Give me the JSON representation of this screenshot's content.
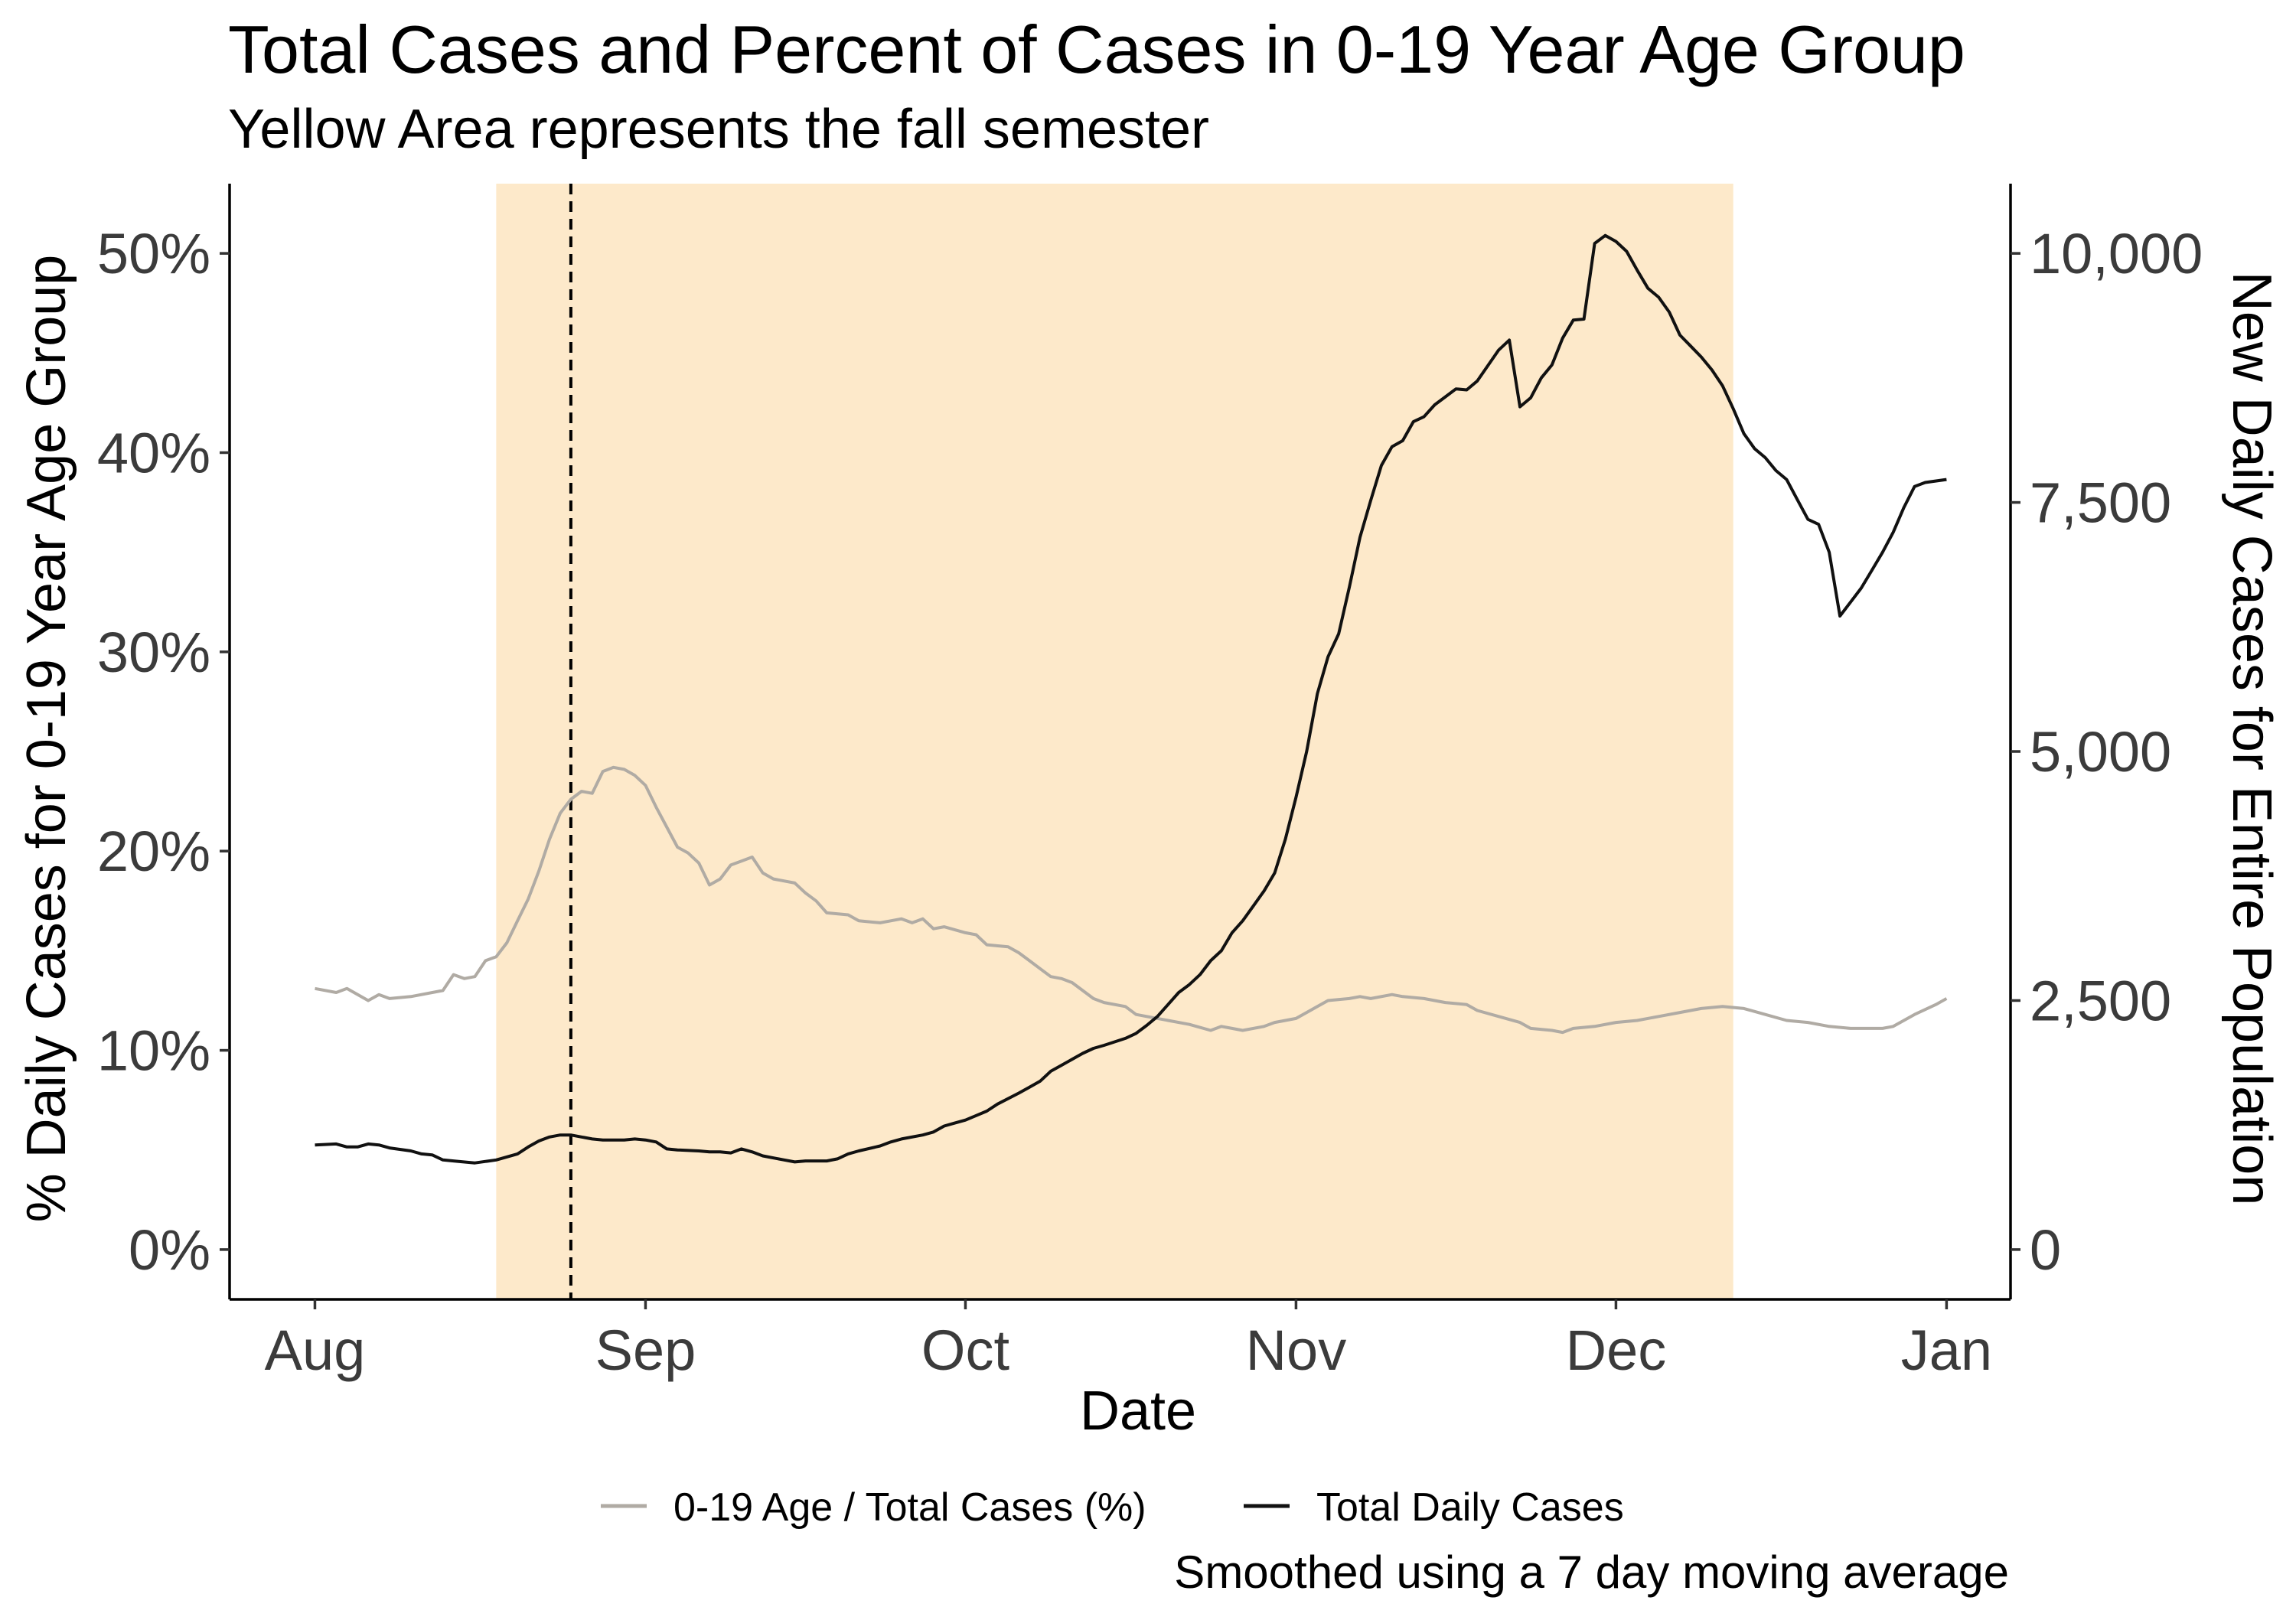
{
  "chart_data": {
    "type": "line",
    "title": "Total Cases and Percent of Cases in 0-19 Year Age Group",
    "subtitle": "Yellow Area represents the fall semester",
    "xlabel": "Date",
    "ylabel_left": "% Daily Cases for 0-19 Year Age Group",
    "ylabel_right": "New Daily Cases for Entire Population",
    "caption": "Smoothed using a 7 day moving average",
    "legend_position": "bottom",
    "grid": false,
    "x_ticks": [
      {
        "label": "Aug",
        "date": "2020-08-01"
      },
      {
        "label": "Sep",
        "date": "2020-09-01"
      },
      {
        "label": "Oct",
        "date": "2020-10-01"
      },
      {
        "label": "Nov",
        "date": "2020-11-01"
      },
      {
        "label": "Dec",
        "date": "2020-12-01"
      },
      {
        "label": "Jan",
        "date": "2021-01-01"
      }
    ],
    "xlim": [
      "2020-07-24",
      "2021-01-07"
    ],
    "y_left": {
      "ticks": [
        {
          "label": "0%",
          "value": 0
        },
        {
          "label": "10%",
          "value": 10
        },
        {
          "label": "20%",
          "value": 20
        },
        {
          "label": "30%",
          "value": 30
        },
        {
          "label": "40%",
          "value": 40
        },
        {
          "label": "50%",
          "value": 50
        }
      ],
      "lim": [
        -2.5,
        53.5
      ]
    },
    "y_right": {
      "ticks": [
        {
          "label": "0",
          "value": 0
        },
        {
          "label": "2,500",
          "value": 2500
        },
        {
          "label": "5,000",
          "value": 5000
        },
        {
          "label": "7,500",
          "value": 7500
        },
        {
          "label": "10,000",
          "value": 10000
        }
      ],
      "lim": [
        -500,
        10700
      ]
    },
    "shaded_region": {
      "start": "2020-08-18",
      "end": "2020-12-12",
      "color": "#fde9ca"
    },
    "vline": {
      "date": "2020-08-25",
      "style": "dashed",
      "color": "#000000"
    },
    "series": [
      {
        "name": "0-19 Age / Total Cases (%)",
        "axis": "left",
        "color": "#b0aba4",
        "points": [
          [
            "2020-08-01",
            13.1
          ],
          [
            "2020-08-03",
            12.9
          ],
          [
            "2020-08-04",
            13.1
          ],
          [
            "2020-08-06",
            12.5
          ],
          [
            "2020-08-07",
            12.8
          ],
          [
            "2020-08-08",
            12.6
          ],
          [
            "2020-08-10",
            12.7
          ],
          [
            "2020-08-13",
            13.0
          ],
          [
            "2020-08-14",
            13.8
          ],
          [
            "2020-08-15",
            13.6
          ],
          [
            "2020-08-16",
            13.7
          ],
          [
            "2020-08-17",
            14.5
          ],
          [
            "2020-08-18",
            14.7
          ],
          [
            "2020-08-19",
            15.4
          ],
          [
            "2020-08-20",
            16.5
          ],
          [
            "2020-08-21",
            17.6
          ],
          [
            "2020-08-22",
            19.0
          ],
          [
            "2020-08-23",
            20.6
          ],
          [
            "2020-08-24",
            21.9
          ],
          [
            "2020-08-25",
            22.6
          ],
          [
            "2020-08-26",
            23.0
          ],
          [
            "2020-08-27",
            22.9
          ],
          [
            "2020-08-28",
            24.0
          ],
          [
            "2020-08-29",
            24.2
          ],
          [
            "2020-08-30",
            24.1
          ],
          [
            "2020-08-31",
            23.8
          ],
          [
            "2020-09-01",
            23.3
          ],
          [
            "2020-09-02",
            22.2
          ],
          [
            "2020-09-03",
            21.2
          ],
          [
            "2020-09-04",
            20.2
          ],
          [
            "2020-09-05",
            19.9
          ],
          [
            "2020-09-06",
            19.4
          ],
          [
            "2020-09-07",
            18.3
          ],
          [
            "2020-09-08",
            18.6
          ],
          [
            "2020-09-09",
            19.3
          ],
          [
            "2020-09-10",
            19.5
          ],
          [
            "2020-09-11",
            19.7
          ],
          [
            "2020-09-12",
            18.9
          ],
          [
            "2020-09-13",
            18.6
          ],
          [
            "2020-09-15",
            18.4
          ],
          [
            "2020-09-16",
            17.9
          ],
          [
            "2020-09-17",
            17.5
          ],
          [
            "2020-09-18",
            16.9
          ],
          [
            "2020-09-20",
            16.8
          ],
          [
            "2020-09-21",
            16.5
          ],
          [
            "2020-09-23",
            16.4
          ],
          [
            "2020-09-24",
            16.5
          ],
          [
            "2020-09-25",
            16.6
          ],
          [
            "2020-09-26",
            16.4
          ],
          [
            "2020-09-27",
            16.6
          ],
          [
            "2020-09-28",
            16.1
          ],
          [
            "2020-09-29",
            16.2
          ],
          [
            "2020-10-01",
            15.9
          ],
          [
            "2020-10-02",
            15.8
          ],
          [
            "2020-10-03",
            15.3
          ],
          [
            "2020-10-05",
            15.2
          ],
          [
            "2020-10-06",
            14.9
          ],
          [
            "2020-10-07",
            14.5
          ],
          [
            "2020-10-08",
            14.1
          ],
          [
            "2020-10-09",
            13.7
          ],
          [
            "2020-10-10",
            13.6
          ],
          [
            "2020-10-11",
            13.4
          ],
          [
            "2020-10-12",
            13.0
          ],
          [
            "2020-10-13",
            12.6
          ],
          [
            "2020-10-14",
            12.4
          ],
          [
            "2020-10-16",
            12.2
          ],
          [
            "2020-10-17",
            11.8
          ],
          [
            "2020-10-18",
            11.7
          ],
          [
            "2020-10-20",
            11.5
          ],
          [
            "2020-10-22",
            11.3
          ],
          [
            "2020-10-24",
            11.0
          ],
          [
            "2020-10-25",
            11.2
          ],
          [
            "2020-10-26",
            11.1
          ],
          [
            "2020-10-27",
            11.0
          ],
          [
            "2020-10-29",
            11.2
          ],
          [
            "2020-10-30",
            11.4
          ],
          [
            "2020-11-01",
            11.6
          ],
          [
            "2020-11-02",
            11.9
          ],
          [
            "2020-11-03",
            12.2
          ],
          [
            "2020-11-04",
            12.5
          ],
          [
            "2020-11-06",
            12.6
          ],
          [
            "2020-11-07",
            12.7
          ],
          [
            "2020-11-08",
            12.6
          ],
          [
            "2020-11-10",
            12.8
          ],
          [
            "2020-11-11",
            12.7
          ],
          [
            "2020-11-13",
            12.6
          ],
          [
            "2020-11-15",
            12.4
          ],
          [
            "2020-11-17",
            12.3
          ],
          [
            "2020-11-18",
            12.0
          ],
          [
            "2020-11-20",
            11.7
          ],
          [
            "2020-11-22",
            11.4
          ],
          [
            "2020-11-23",
            11.1
          ],
          [
            "2020-11-25",
            11.0
          ],
          [
            "2020-11-26",
            10.9
          ],
          [
            "2020-11-27",
            11.1
          ],
          [
            "2020-11-29",
            11.2
          ],
          [
            "2020-12-01",
            11.4
          ],
          [
            "2020-12-03",
            11.5
          ],
          [
            "2020-12-05",
            11.7
          ],
          [
            "2020-12-07",
            11.9
          ],
          [
            "2020-12-09",
            12.1
          ],
          [
            "2020-12-11",
            12.2
          ],
          [
            "2020-12-13",
            12.1
          ],
          [
            "2020-12-15",
            11.8
          ],
          [
            "2020-12-17",
            11.5
          ],
          [
            "2020-12-19",
            11.4
          ],
          [
            "2020-12-21",
            11.2
          ],
          [
            "2020-12-23",
            11.1
          ],
          [
            "2020-12-26",
            11.1
          ],
          [
            "2020-12-27",
            11.2
          ],
          [
            "2020-12-29",
            11.8
          ],
          [
            "2020-12-31",
            12.3
          ],
          [
            "2021-01-01",
            12.6
          ]
        ]
      },
      {
        "name": "Total Daily Cases",
        "axis": "right",
        "color": "#111111",
        "points": [
          [
            "2020-08-01",
            1050
          ],
          [
            "2020-08-03",
            1060
          ],
          [
            "2020-08-04",
            1030
          ],
          [
            "2020-08-05",
            1030
          ],
          [
            "2020-08-06",
            1060
          ],
          [
            "2020-08-07",
            1050
          ],
          [
            "2020-08-08",
            1020
          ],
          [
            "2020-08-10",
            990
          ],
          [
            "2020-08-11",
            960
          ],
          [
            "2020-08-12",
            950
          ],
          [
            "2020-08-13",
            900
          ],
          [
            "2020-08-14",
            890
          ],
          [
            "2020-08-16",
            870
          ],
          [
            "2020-08-18",
            900
          ],
          [
            "2020-08-20",
            960
          ],
          [
            "2020-08-21",
            1030
          ],
          [
            "2020-08-22",
            1090
          ],
          [
            "2020-08-23",
            1130
          ],
          [
            "2020-08-24",
            1150
          ],
          [
            "2020-08-25",
            1150
          ],
          [
            "2020-08-26",
            1130
          ],
          [
            "2020-08-27",
            1110
          ],
          [
            "2020-08-28",
            1100
          ],
          [
            "2020-08-30",
            1100
          ],
          [
            "2020-08-31",
            1110
          ],
          [
            "2020-09-01",
            1100
          ],
          [
            "2020-09-02",
            1080
          ],
          [
            "2020-09-03",
            1010
          ],
          [
            "2020-09-04",
            1000
          ],
          [
            "2020-09-06",
            990
          ],
          [
            "2020-09-07",
            980
          ],
          [
            "2020-09-08",
            980
          ],
          [
            "2020-09-09",
            970
          ],
          [
            "2020-09-10",
            1010
          ],
          [
            "2020-09-11",
            980
          ],
          [
            "2020-09-12",
            940
          ],
          [
            "2020-09-14",
            900
          ],
          [
            "2020-09-15",
            880
          ],
          [
            "2020-09-16",
            890
          ],
          [
            "2020-09-18",
            890
          ],
          [
            "2020-09-19",
            910
          ],
          [
            "2020-09-20",
            960
          ],
          [
            "2020-09-21",
            990
          ],
          [
            "2020-09-23",
            1040
          ],
          [
            "2020-09-24",
            1080
          ],
          [
            "2020-09-25",
            1110
          ],
          [
            "2020-09-27",
            1150
          ],
          [
            "2020-09-28",
            1180
          ],
          [
            "2020-09-29",
            1240
          ],
          [
            "2020-09-30",
            1270
          ],
          [
            "2020-10-01",
            1300
          ],
          [
            "2020-10-03",
            1390
          ],
          [
            "2020-10-04",
            1460
          ],
          [
            "2020-10-06",
            1570
          ],
          [
            "2020-10-07",
            1630
          ],
          [
            "2020-10-08",
            1690
          ],
          [
            "2020-10-09",
            1790
          ],
          [
            "2020-10-10",
            1850
          ],
          [
            "2020-10-12",
            1970
          ],
          [
            "2020-10-13",
            2020
          ],
          [
            "2020-10-14",
            2050
          ],
          [
            "2020-10-16",
            2120
          ],
          [
            "2020-10-17",
            2170
          ],
          [
            "2020-10-18",
            2250
          ],
          [
            "2020-10-19",
            2340
          ],
          [
            "2020-10-20",
            2460
          ],
          [
            "2020-10-21",
            2580
          ],
          [
            "2020-10-22",
            2660
          ],
          [
            "2020-10-23",
            2760
          ],
          [
            "2020-10-24",
            2900
          ],
          [
            "2020-10-25",
            3000
          ],
          [
            "2020-10-26",
            3180
          ],
          [
            "2020-10-27",
            3300
          ],
          [
            "2020-10-28",
            3450
          ],
          [
            "2020-10-29",
            3600
          ],
          [
            "2020-10-30",
            3780
          ],
          [
            "2020-10-31",
            4120
          ],
          [
            "2020-11-01",
            4540
          ],
          [
            "2020-11-02",
            5000
          ],
          [
            "2020-11-03",
            5580
          ],
          [
            "2020-11-04",
            5950
          ],
          [
            "2020-11-05",
            6180
          ],
          [
            "2020-11-06",
            6650
          ],
          [
            "2020-11-07",
            7150
          ],
          [
            "2020-11-08",
            7520
          ],
          [
            "2020-11-09",
            7870
          ],
          [
            "2020-11-10",
            8060
          ],
          [
            "2020-11-11",
            8120
          ],
          [
            "2020-11-12",
            8310
          ],
          [
            "2020-11-13",
            8360
          ],
          [
            "2020-11-14",
            8480
          ],
          [
            "2020-11-15",
            8560
          ],
          [
            "2020-11-16",
            8640
          ],
          [
            "2020-11-17",
            8630
          ],
          [
            "2020-11-18",
            8720
          ],
          [
            "2020-11-20",
            9030
          ],
          [
            "2020-11-21",
            9130
          ],
          [
            "2020-11-22",
            8460
          ],
          [
            "2020-11-23",
            8550
          ],
          [
            "2020-11-24",
            8750
          ],
          [
            "2020-11-25",
            8880
          ],
          [
            "2020-11-26",
            9150
          ],
          [
            "2020-11-27",
            9330
          ],
          [
            "2020-11-28",
            9340
          ],
          [
            "2020-11-29",
            10100
          ],
          [
            "2020-11-30",
            10180
          ],
          [
            "2020-12-01",
            10120
          ],
          [
            "2020-12-02",
            10020
          ],
          [
            "2020-12-03",
            9830
          ],
          [
            "2020-12-04",
            9650
          ],
          [
            "2020-12-05",
            9560
          ],
          [
            "2020-12-06",
            9410
          ],
          [
            "2020-12-07",
            9180
          ],
          [
            "2020-12-08",
            9070
          ],
          [
            "2020-12-09",
            8960
          ],
          [
            "2020-12-10",
            8830
          ],
          [
            "2020-12-11",
            8670
          ],
          [
            "2020-12-12",
            8440
          ],
          [
            "2020-12-13",
            8190
          ],
          [
            "2020-12-14",
            8040
          ],
          [
            "2020-12-15",
            7950
          ],
          [
            "2020-12-16",
            7820
          ],
          [
            "2020-12-17",
            7730
          ],
          [
            "2020-12-18",
            7530
          ],
          [
            "2020-12-19",
            7330
          ],
          [
            "2020-12-20",
            7280
          ],
          [
            "2020-12-21",
            7000
          ],
          [
            "2020-12-22",
            6360
          ],
          [
            "2020-12-23",
            6500
          ],
          [
            "2020-12-24",
            6640
          ],
          [
            "2020-12-25",
            6820
          ],
          [
            "2020-12-26",
            7000
          ],
          [
            "2020-12-27",
            7200
          ],
          [
            "2020-12-28",
            7450
          ],
          [
            "2020-12-29",
            7660
          ],
          [
            "2020-12-30",
            7700
          ],
          [
            "2021-01-01",
            7730
          ]
        ]
      }
    ]
  }
}
